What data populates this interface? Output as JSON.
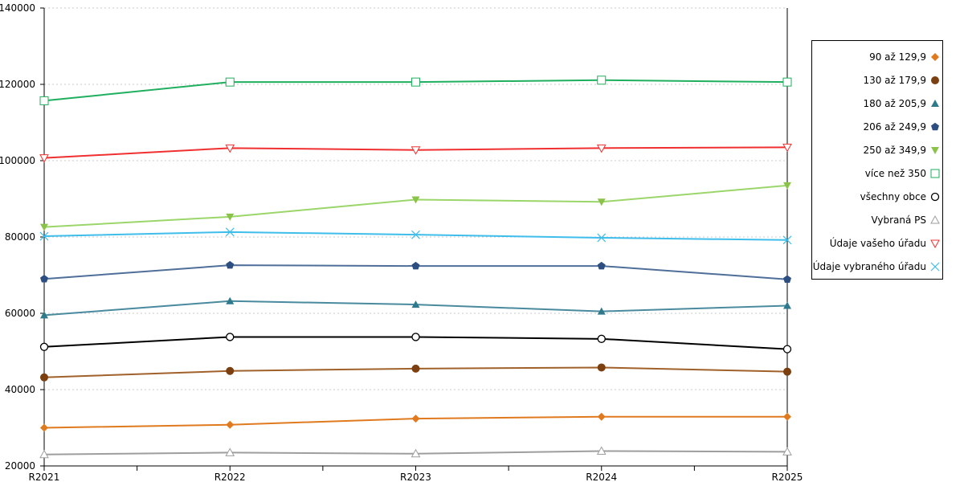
{
  "chart_data": {
    "type": "line",
    "categories": [
      "R2021",
      "R2022",
      "R2023",
      "R2024",
      "R2025"
    ],
    "ylim": [
      20000,
      140000
    ],
    "yticks": [
      20000,
      40000,
      60000,
      80000,
      100000,
      120000,
      140000
    ],
    "ytick_labels": [
      "20000",
      "40000",
      "60000",
      "80000",
      "100000",
      "120000",
      "140000"
    ],
    "grid": "horizontal dotted",
    "legend_position": "right",
    "series": [
      {
        "name": "90 až 129,9",
        "values": [
          30000,
          30800,
          32400,
          32900,
          32900
        ],
        "color": "#E07A1F",
        "marker": "diamond"
      },
      {
        "name": "130 až 179,9",
        "values": [
          43200,
          44900,
          45500,
          45800,
          44700
        ],
        "color": "#A0612A",
        "marker_color": "#7B3F10",
        "marker": "circle"
      },
      {
        "name": "180 až 205,9",
        "values": [
          59500,
          63200,
          62300,
          60500,
          62000
        ],
        "color": "#4A8A9E",
        "marker_color": "#2E7A8C",
        "marker": "triangle-up"
      },
      {
        "name": "206 až 249,9",
        "values": [
          69000,
          72600,
          72400,
          72400,
          68900
        ],
        "color": "#4F6E99",
        "marker_color": "#2C4E80",
        "marker": "pentagon"
      },
      {
        "name": "250 až 349,9",
        "values": [
          82600,
          85300,
          89800,
          89200,
          93500
        ],
        "color": "#9BD66A",
        "marker_color": "#8BC34A",
        "marker": "triangle-down"
      },
      {
        "name": "více než 350",
        "values": [
          115700,
          120600,
          120600,
          121100,
          120600
        ],
        "color": "#1FAF5E",
        "marker": "square-open"
      },
      {
        "name": "všechny obce",
        "values": [
          51200,
          53800,
          53800,
          53300,
          50600
        ],
        "color": "#000000",
        "marker": "circle-open"
      },
      {
        "name": "Vybraná PS",
        "values": [
          23000,
          23500,
          23200,
          23900,
          23700
        ],
        "color": "#9E9E9E",
        "marker": "triangle-up-open"
      },
      {
        "name": "Údaje vašeho úřadu",
        "values": [
          100700,
          103300,
          102800,
          103300,
          103500
        ],
        "color": "#F03030",
        "marker": "triangle-down-open"
      },
      {
        "name": "Údaje vybraného úřadu",
        "values": [
          80200,
          81300,
          80600,
          79800,
          79200
        ],
        "color": "#3FBDEB",
        "marker": "x"
      }
    ]
  }
}
